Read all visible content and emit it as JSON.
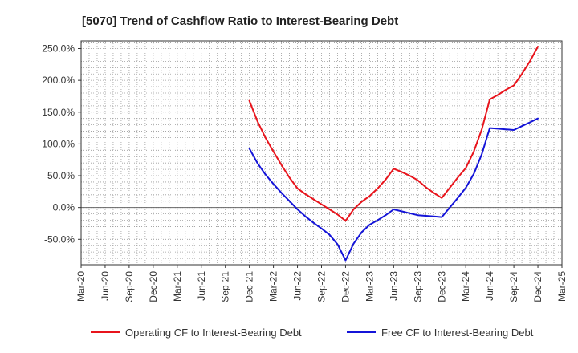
{
  "chart_data": {
    "type": "line",
    "title": "[5070]  Trend of Cashflow Ratio to Interest-Bearing Debt",
    "xlabel": "",
    "ylabel": "",
    "x_ticks": [
      "Mar-20",
      "Jun-20",
      "Sep-20",
      "Dec-20",
      "Mar-21",
      "Jun-21",
      "Sep-21",
      "Dec-21",
      "Mar-22",
      "Jun-22",
      "Sep-22",
      "Dec-22",
      "Mar-23",
      "Jun-23",
      "Sep-23",
      "Dec-23",
      "Mar-24",
      "Jun-24",
      "Sep-24",
      "Dec-24",
      "Mar-25"
    ],
    "y_ticks": [
      -50,
      0,
      50,
      100,
      150,
      200,
      250
    ],
    "y_tick_labels": [
      "-50.0%",
      "0.0%",
      "50.0%",
      "100.0%",
      "150.0%",
      "200.0%",
      "250.0%"
    ],
    "ylim": [
      -90,
      262
    ],
    "grid": true,
    "legend_position": "bottom",
    "series": [
      {
        "name": "Operating CF to Interest-Bearing Debt",
        "color": "#e8141c",
        "x": [
          "Dec-21",
          "Jan-22",
          "Feb-22",
          "Mar-22",
          "Apr-22",
          "May-22",
          "Jun-22",
          "Jul-22",
          "Aug-22",
          "Sep-22",
          "Oct-22",
          "Nov-22",
          "Dec-22",
          "Jan-23",
          "Feb-23",
          "Mar-23",
          "Apr-23",
          "May-23",
          "Jun-23",
          "Jul-23",
          "Aug-23",
          "Sep-23",
          "Oct-23",
          "Nov-23",
          "Dec-23",
          "Jan-24",
          "Feb-24",
          "Mar-24",
          "Apr-24",
          "May-24",
          "Jun-24",
          "Jul-24",
          "Aug-24",
          "Sep-24",
          "Oct-24",
          "Nov-24",
          "Dec-24"
        ],
        "values": [
          168,
          136,
          110,
          88,
          67,
          47,
          30,
          21,
          13,
          5,
          -3,
          -11,
          -21,
          -3,
          9,
          18,
          30,
          44,
          61,
          56,
          50,
          43,
          32,
          23,
          15,
          31,
          47,
          62,
          88,
          123,
          170,
          177,
          185,
          192,
          210,
          230,
          253
        ]
      },
      {
        "name": "Free CF to Interest-Bearing Debt",
        "color": "#1414d8",
        "x": [
          "Dec-21",
          "Jan-22",
          "Feb-22",
          "Mar-22",
          "Apr-22",
          "May-22",
          "Jun-22",
          "Jul-22",
          "Aug-22",
          "Sep-22",
          "Oct-22",
          "Nov-22",
          "Dec-22",
          "Jan-23",
          "Feb-23",
          "Mar-23",
          "Apr-23",
          "May-23",
          "Jun-23",
          "Jul-23",
          "Aug-23",
          "Sep-23",
          "Oct-23",
          "Nov-23",
          "Dec-23",
          "Jan-24",
          "Feb-24",
          "Mar-24",
          "Apr-24",
          "May-24",
          "Jun-24",
          "Jul-24",
          "Aug-24",
          "Sep-24",
          "Oct-24",
          "Nov-24",
          "Dec-24"
        ],
        "values": [
          93,
          70,
          52,
          37,
          23,
          10,
          -3,
          -14,
          -24,
          -33,
          -43,
          -58,
          -83,
          -57,
          -39,
          -27,
          -20,
          -12,
          -3,
          -6,
          -9,
          -12,
          -13,
          -14,
          -15,
          0,
          15,
          31,
          53,
          84,
          125,
          124,
          123,
          122,
          128,
          134,
          140
        ]
      }
    ]
  }
}
